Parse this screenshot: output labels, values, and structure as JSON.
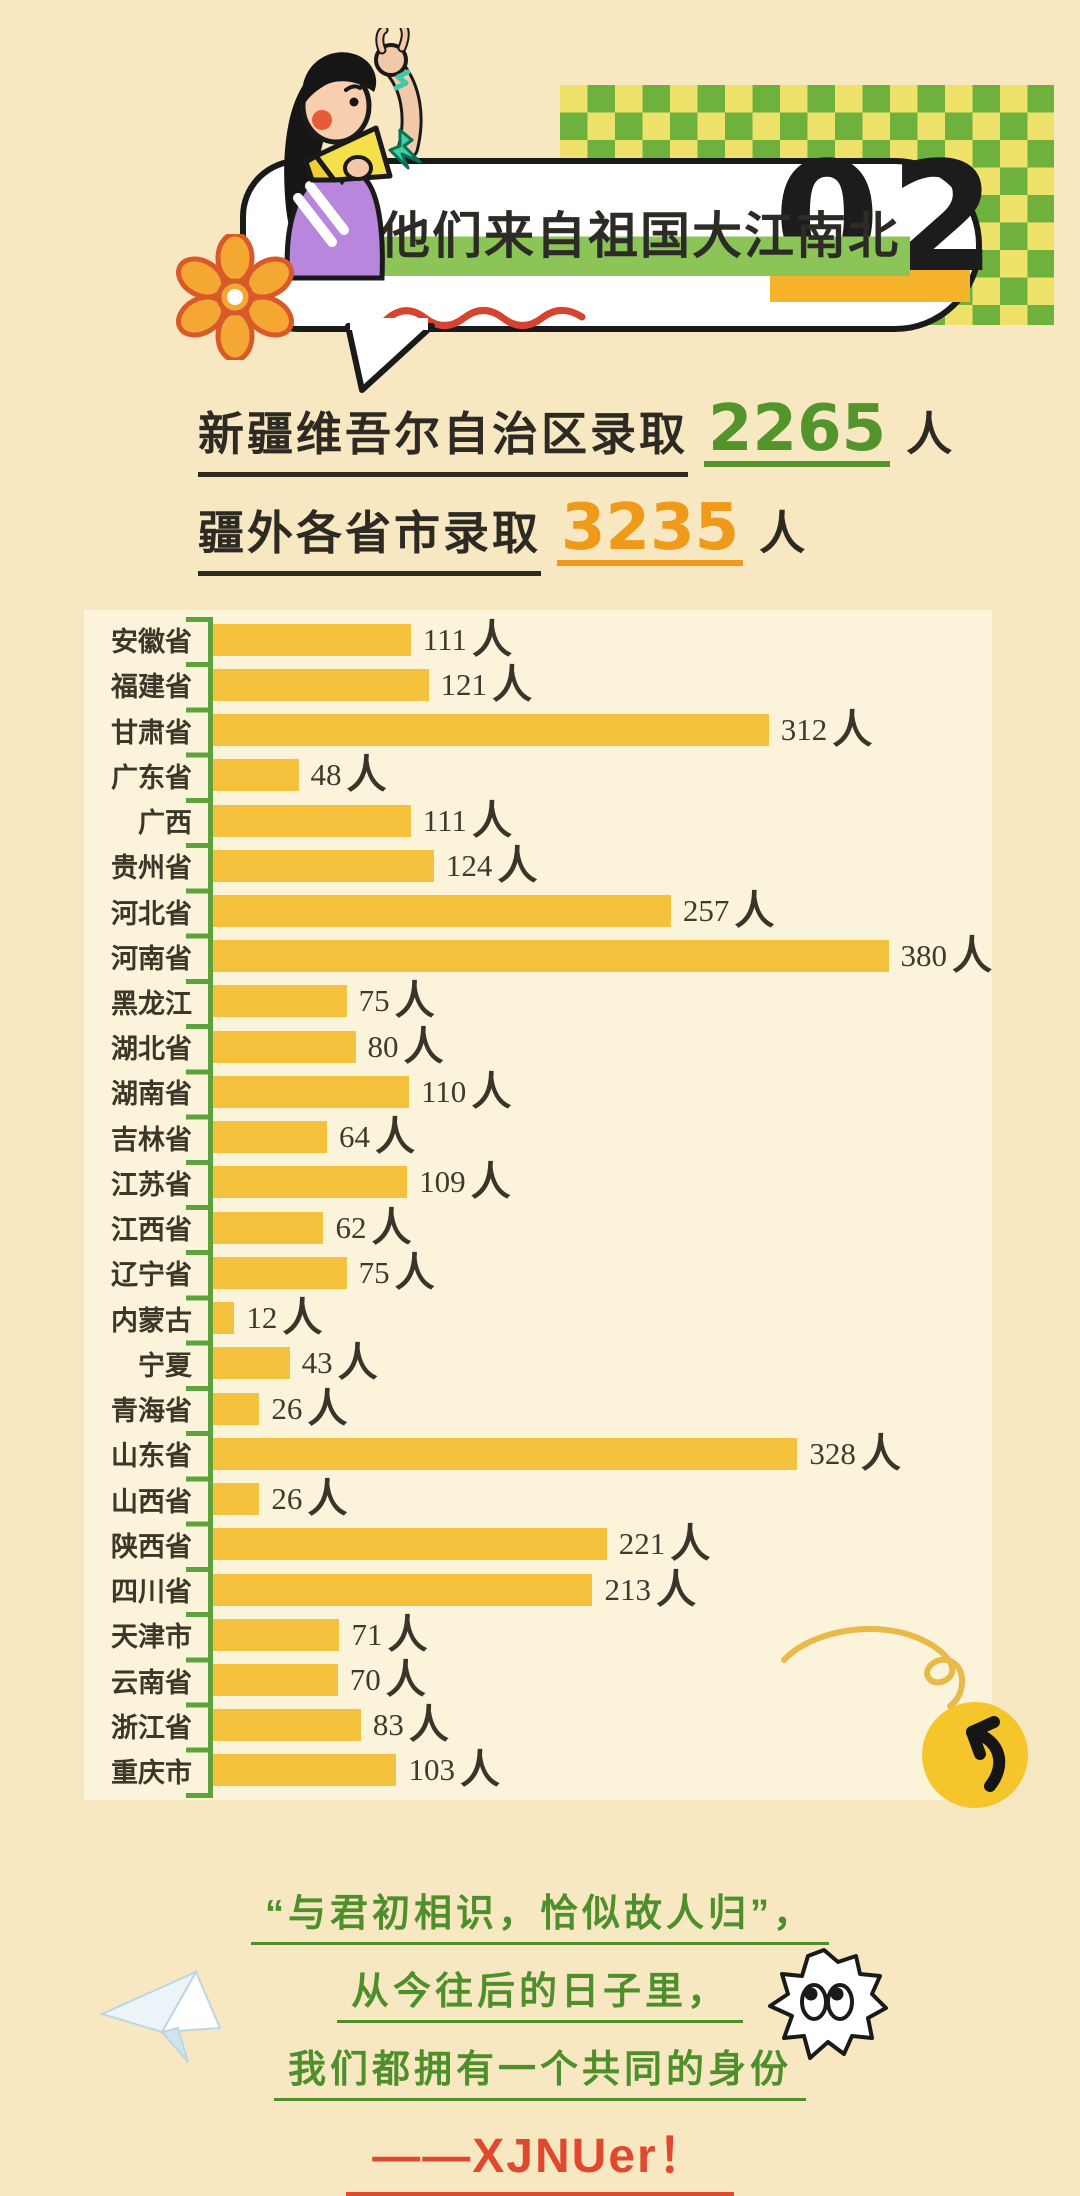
{
  "header": {
    "section_number": "02",
    "bubble_title": "他们来自祖国大江南北",
    "highlight_color": "#8cc557",
    "number_underline_color": "#f6b42c",
    "wavy_line_color": "#d64430",
    "checker_colors": [
      "#6eb23d",
      "#eee26a"
    ],
    "illustration": "girl-with-megaphone-illustration"
  },
  "summary": {
    "line1": {
      "prefix": "新疆维吾尔自治区录取",
      "value": "2265",
      "unit": "人",
      "value_color": "#53942c"
    },
    "line2": {
      "prefix": "疆外各省市录取",
      "value": "3235",
      "unit": "人",
      "value_color": "#f09a1b"
    }
  },
  "chart_data": {
    "type": "bar",
    "orientation": "horizontal",
    "unit": "人",
    "categories": [
      "安徽省",
      "福建省",
      "甘肃省",
      "广东省",
      "广西",
      "贵州省",
      "河北省",
      "河南省",
      "黑龙江",
      "湖北省",
      "湖南省",
      "吉林省",
      "江苏省",
      "江西省",
      "辽宁省",
      "内蒙古",
      "宁夏",
      "青海省",
      "山东省",
      "山西省",
      "陕西省",
      "四川省",
      "天津市",
      "云南省",
      "浙江省",
      "重庆市"
    ],
    "values": [
      111,
      121,
      312,
      48,
      111,
      124,
      257,
      380,
      75,
      80,
      110,
      64,
      109,
      62,
      75,
      12,
      43,
      26,
      328,
      26,
      221,
      213,
      71,
      70,
      83,
      103
    ],
    "xlim": [
      0,
      380
    ],
    "bar_color": "#f5c23e",
    "axis_color": "#5da23b",
    "panel_color": "#fcf4da",
    "grid": false,
    "value_labels": true
  },
  "footer": {
    "lines": [
      "“与君初相识，恰似故人归”，",
      "从今往后的日子里，",
      "我们都拥有一个共同的身份"
    ],
    "signature": "——XJNUer！",
    "line_color": "#4f8f2b",
    "signature_color": "#df4a2e"
  },
  "decorations": [
    "checkerboard-pattern",
    "flower-icon",
    "girl-with-megaphone-illustration",
    "wavy-underline-icon",
    "swirl-line-icon",
    "curved-arrow-circle-icon",
    "googly-eyes-blob-icon",
    "paper-airplane-icon"
  ]
}
